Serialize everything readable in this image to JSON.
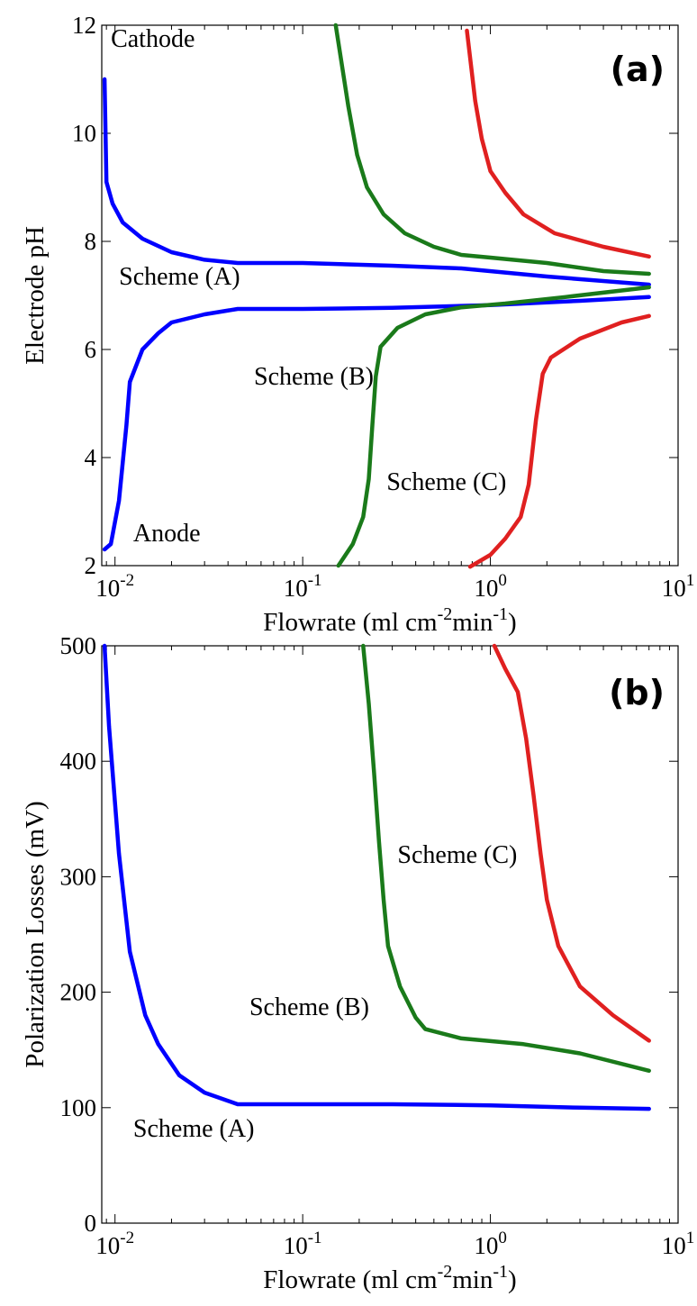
{
  "chart_data": [
    {
      "panel": "(a)",
      "type": "line",
      "xscale": "log",
      "xlim": [
        0.0085,
        10
      ],
      "ylim": [
        2,
        12
      ],
      "xticks": [
        {
          "value": 0.01,
          "base": "10",
          "exp": "-2"
        },
        {
          "value": 0.1,
          "base": "10",
          "exp": "-1"
        },
        {
          "value": 1,
          "base": "10",
          "exp": "0"
        },
        {
          "value": 10,
          "base": "10",
          "exp": "1"
        }
      ],
      "yticks": [
        {
          "value": 2,
          "label": "2"
        },
        {
          "value": 4,
          "label": "4"
        },
        {
          "value": 6,
          "label": "6"
        },
        {
          "value": 8,
          "label": "8"
        },
        {
          "value": 10,
          "label": "10"
        },
        {
          "value": 12,
          "label": "12"
        }
      ],
      "xlabel": {
        "pre": "Flowrate (ml cm",
        "sup": "-2",
        "post": "min",
        "sup2": "-1",
        "end": ")"
      },
      "ylabel": "Electrode pH",
      "annotations": [
        {
          "text": "Cathode",
          "x": 0.0095,
          "y": 11.6
        },
        {
          "text": "Anode",
          "x": 0.0125,
          "y": 2.45
        },
        {
          "text": "Scheme (A)",
          "x": 0.0105,
          "y": 7.2
        },
        {
          "text": "Scheme (B)",
          "x": 0.055,
          "y": 5.35
        },
        {
          "text": "Scheme (C)",
          "x": 0.28,
          "y": 3.4
        }
      ],
      "series": [
        {
          "color": "#0000ff",
          "points": [
            [
              0.0088,
              11.0
            ],
            [
              0.009,
              9.1
            ],
            [
              0.0097,
              8.7
            ],
            [
              0.011,
              8.35
            ],
            [
              0.014,
              8.05
            ],
            [
              0.02,
              7.8
            ],
            [
              0.03,
              7.66
            ],
            [
              0.045,
              7.6
            ],
            [
              0.1,
              7.6
            ],
            [
              0.3,
              7.55
            ],
            [
              0.7,
              7.5
            ],
            [
              2,
              7.35
            ],
            [
              7,
              7.2
            ]
          ]
        },
        {
          "color": "#0000ff",
          "points": [
            [
              0.0088,
              2.3
            ],
            [
              0.0095,
              2.4
            ],
            [
              0.0105,
              3.2
            ],
            [
              0.0115,
              4.6
            ],
            [
              0.012,
              5.4
            ],
            [
              0.014,
              6.0
            ],
            [
              0.017,
              6.3
            ],
            [
              0.02,
              6.5
            ],
            [
              0.03,
              6.65
            ],
            [
              0.045,
              6.75
            ],
            [
              0.1,
              6.75
            ],
            [
              0.3,
              6.77
            ],
            [
              1,
              6.82
            ],
            [
              3,
              6.9
            ],
            [
              7,
              6.97
            ]
          ]
        },
        {
          "color": "#1a7a1a",
          "points": [
            [
              0.15,
              12.0
            ],
            [
              0.175,
              10.5
            ],
            [
              0.195,
              9.6
            ],
            [
              0.22,
              9.0
            ],
            [
              0.27,
              8.5
            ],
            [
              0.35,
              8.15
            ],
            [
              0.5,
              7.9
            ],
            [
              0.7,
              7.75
            ],
            [
              1,
              7.7
            ],
            [
              2,
              7.6
            ],
            [
              4,
              7.45
            ],
            [
              7,
              7.4
            ]
          ]
        },
        {
          "color": "#1a7a1a",
          "points": [
            [
              0.155,
              2.0
            ],
            [
              0.185,
              2.4
            ],
            [
              0.21,
              2.9
            ],
            [
              0.225,
              3.6
            ],
            [
              0.235,
              4.6
            ],
            [
              0.245,
              5.5
            ],
            [
              0.26,
              6.05
            ],
            [
              0.32,
              6.4
            ],
            [
              0.45,
              6.65
            ],
            [
              0.7,
              6.78
            ],
            [
              1.2,
              6.85
            ],
            [
              2.5,
              6.97
            ],
            [
              7,
              7.15
            ]
          ]
        },
        {
          "color": "#e02020",
          "points": [
            [
              0.75,
              11.9
            ],
            [
              0.83,
              10.6
            ],
            [
              0.9,
              9.9
            ],
            [
              1.0,
              9.3
            ],
            [
              1.2,
              8.9
            ],
            [
              1.5,
              8.5
            ],
            [
              2.2,
              8.15
            ],
            [
              4,
              7.9
            ],
            [
              7,
              7.72
            ]
          ]
        },
        {
          "color": "#e02020",
          "points": [
            [
              0.78,
              1.98
            ],
            [
              1.0,
              2.2
            ],
            [
              1.2,
              2.5
            ],
            [
              1.45,
              2.9
            ],
            [
              1.6,
              3.5
            ],
            [
              1.75,
              4.7
            ],
            [
              1.9,
              5.55
            ],
            [
              2.1,
              5.85
            ],
            [
              3,
              6.2
            ],
            [
              5,
              6.5
            ],
            [
              7,
              6.62
            ]
          ]
        }
      ]
    },
    {
      "panel": "(b)",
      "type": "line",
      "xscale": "log",
      "xlim": [
        0.0085,
        10
      ],
      "ylim": [
        0,
        500
      ],
      "xticks": [
        {
          "value": 0.01,
          "base": "10",
          "exp": "-2"
        },
        {
          "value": 0.1,
          "base": "10",
          "exp": "-1"
        },
        {
          "value": 1,
          "base": "10",
          "exp": "0"
        },
        {
          "value": 10,
          "base": "10",
          "exp": "1"
        }
      ],
      "yticks": [
        {
          "value": 0,
          "label": "0"
        },
        {
          "value": 100,
          "label": "100"
        },
        {
          "value": 200,
          "label": "200"
        },
        {
          "value": 300,
          "label": "300"
        },
        {
          "value": 400,
          "label": "400"
        },
        {
          "value": 500,
          "label": "500"
        }
      ],
      "xlabel": {
        "pre": "Flowrate (ml cm",
        "sup": "-2",
        "post": "min",
        "sup2": "-1",
        "end": ")"
      },
      "ylabel": "Polarization Losses (mV)",
      "annotations": [
        {
          "text": "Scheme (A)",
          "x": 0.0125,
          "y": 75
        },
        {
          "text": "Scheme (B)",
          "x": 0.052,
          "y": 180
        },
        {
          "text": "Scheme (C)",
          "x": 0.32,
          "y": 312
        }
      ],
      "series": [
        {
          "color": "#0000ff",
          "points": [
            [
              0.0088,
              500
            ],
            [
              0.0093,
              430
            ],
            [
              0.0105,
              320
            ],
            [
              0.012,
              235
            ],
            [
              0.0145,
              180
            ],
            [
              0.017,
              155
            ],
            [
              0.022,
              128
            ],
            [
              0.03,
              113
            ],
            [
              0.045,
              103
            ],
            [
              0.1,
              103
            ],
            [
              0.3,
              103
            ],
            [
              1,
              102
            ],
            [
              3,
              100
            ],
            [
              7,
              99
            ]
          ]
        },
        {
          "color": "#1a7a1a",
          "points": [
            [
              0.21,
              500
            ],
            [
              0.225,
              450
            ],
            [
              0.24,
              390
            ],
            [
              0.255,
              330
            ],
            [
              0.27,
              280
            ],
            [
              0.285,
              240
            ],
            [
              0.33,
              205
            ],
            [
              0.4,
              178
            ],
            [
              0.45,
              168
            ],
            [
              0.7,
              160
            ],
            [
              1.5,
              155
            ],
            [
              3,
              147
            ],
            [
              7,
              132
            ]
          ]
        },
        {
          "color": "#e02020",
          "points": [
            [
              1.05,
              500
            ],
            [
              1.2,
              480
            ],
            [
              1.4,
              460
            ],
            [
              1.55,
              420
            ],
            [
              1.7,
              370
            ],
            [
              1.85,
              320
            ],
            [
              2.0,
              280
            ],
            [
              2.3,
              240
            ],
            [
              3,
              205
            ],
            [
              4.5,
              180
            ],
            [
              7,
              158
            ]
          ]
        }
      ]
    }
  ]
}
